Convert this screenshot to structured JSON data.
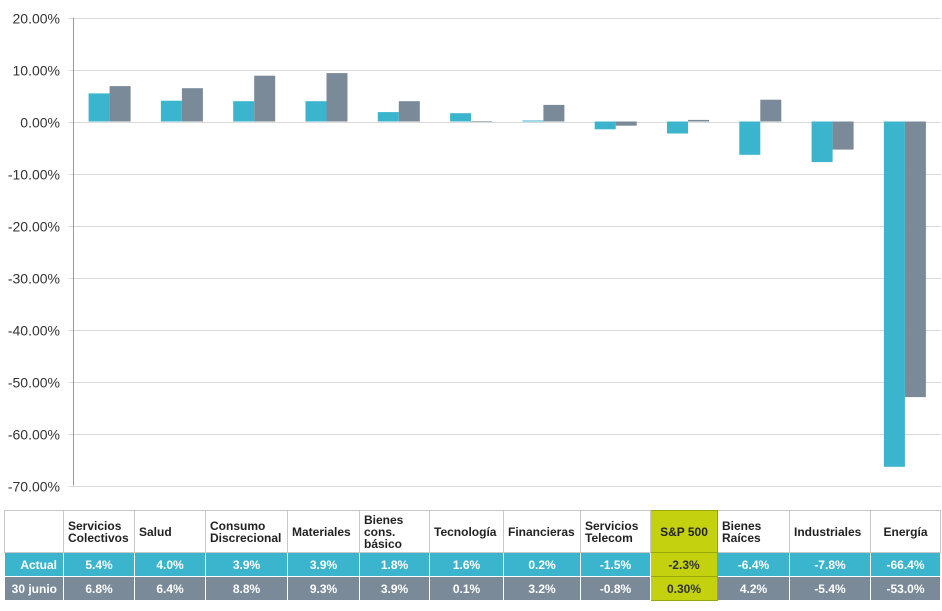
{
  "chart_data": {
    "type": "bar",
    "categories": [
      "Servicios Colectivos",
      "Salud",
      "Consumo Discrecional",
      "Materiales",
      "Bienes cons. básico",
      "Tecnología",
      "Financieras",
      "Servicios Telecom",
      "S&P 500",
      "Bienes Raíces",
      "Industriales",
      "Energía"
    ],
    "series": [
      {
        "name": "Actual",
        "values": [
          5.4,
          4.0,
          3.9,
          3.9,
          1.8,
          1.6,
          0.2,
          -1.5,
          -2.3,
          -6.4,
          -7.8,
          -66.4
        ],
        "labels": [
          "5.4%",
          "4.0%",
          "3.9%",
          "3.9%",
          "1.8%",
          "1.6%",
          "0.2%",
          "-1.5%",
          "-2.3%",
          "-6.4%",
          "-7.8%",
          "-66.4%"
        ],
        "color": "#3bb4cd"
      },
      {
        "name": "30 junio",
        "values": [
          6.8,
          6.4,
          8.8,
          9.3,
          3.9,
          0.1,
          3.2,
          -0.8,
          0.3,
          4.2,
          -5.4,
          -53.0
        ],
        "labels": [
          "6.8%",
          "6.4%",
          "8.8%",
          "9.3%",
          "3.9%",
          "0.1%",
          "3.2%",
          "-0.8%",
          "0.30%",
          "4.2%",
          "-5.4%",
          "-53.0%"
        ],
        "color": "#7a8a98"
      }
    ],
    "yticks": [
      "20.00%",
      "10.00%",
      "0.00%",
      "-10.00%",
      "-20.00%",
      "-30.00%",
      "-40.00%",
      "-50.00%",
      "-60.00%",
      "-70.00%"
    ],
    "ylim": [
      -70,
      20
    ],
    "grid": true,
    "highlight_category": "S&P 500",
    "highlight_color": "#c4d10e"
  },
  "table": {
    "headers": [
      [
        "Servicios",
        "Colectivos"
      ],
      [
        "Salud"
      ],
      [
        "Consumo",
        "Discrecional"
      ],
      [
        "Materiales"
      ],
      [
        "Bienes",
        "cons.",
        "básico"
      ],
      [
        "Tecnología"
      ],
      [
        "Financieras"
      ],
      [
        "Servicios",
        "Telecom"
      ],
      [
        "S&P 500"
      ],
      [
        "Bienes",
        "Raíces"
      ],
      [
        "Industriales"
      ],
      [
        "Energía"
      ]
    ]
  }
}
